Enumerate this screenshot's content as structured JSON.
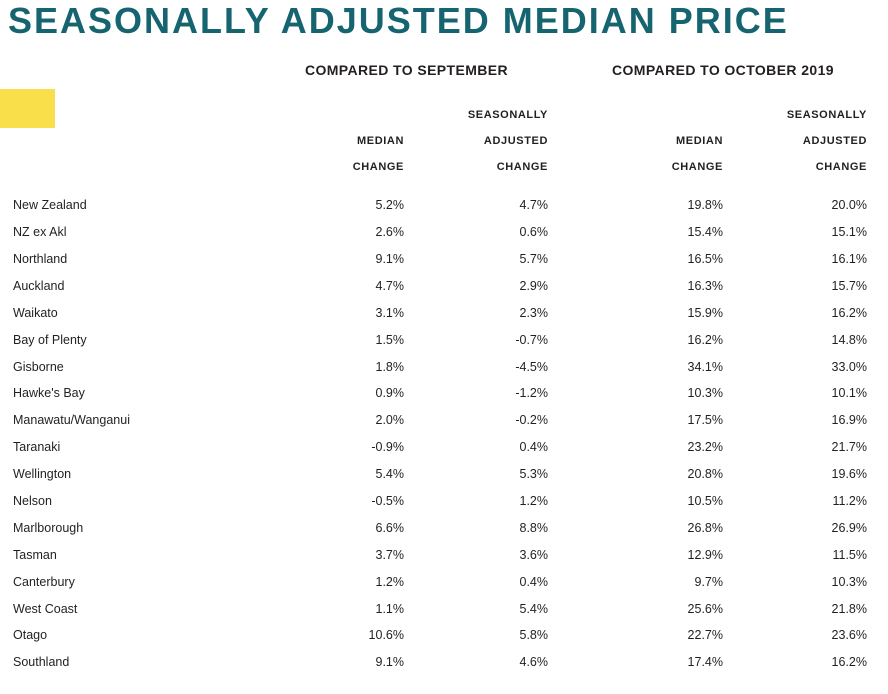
{
  "page": {
    "title": "SEASONALLY ADJUSTED MEDIAN PRICE"
  },
  "colors": {
    "title": "#16646F",
    "highlight": "#F9E04B",
    "text": "#231F20"
  },
  "chart_data": {
    "type": "table",
    "title": "SEASONALLY ADJUSTED MEDIAN PRICE",
    "group_headers": [
      "COMPARED TO SEPTEMBER",
      "COMPARED TO OCTOBER 2019"
    ],
    "column_headers": [
      "MEDIAN\nCHANGE",
      "SEASONALLY\nADJUSTED\nCHANGE",
      "MEDIAN\nCHANGE",
      "SEASONALLY\nADJUSTED\nCHANGE"
    ],
    "rows": [
      {
        "region": "New Zealand",
        "values": [
          "5.2%",
          "4.7%",
          "19.8%",
          "20.0%"
        ]
      },
      {
        "region": "NZ ex Akl",
        "values": [
          "2.6%",
          "0.6%",
          "15.4%",
          "15.1%"
        ]
      },
      {
        "region": "Northland",
        "values": [
          "9.1%",
          "5.7%",
          "16.5%",
          "16.1%"
        ]
      },
      {
        "region": "Auckland",
        "values": [
          "4.7%",
          "2.9%",
          "16.3%",
          "15.7%"
        ]
      },
      {
        "region": "Waikato",
        "values": [
          "3.1%",
          "2.3%",
          "15.9%",
          "16.2%"
        ]
      },
      {
        "region": "Bay of Plenty",
        "values": [
          "1.5%",
          "-0.7%",
          "16.2%",
          "14.8%"
        ]
      },
      {
        "region": "Gisborne",
        "values": [
          "1.8%",
          "-4.5%",
          "34.1%",
          "33.0%"
        ]
      },
      {
        "region": "Hawke's Bay",
        "values": [
          "0.9%",
          "-1.2%",
          "10.3%",
          "10.1%"
        ]
      },
      {
        "region": "Manawatu/Wanganui",
        "values": [
          "2.0%",
          "-0.2%",
          "17.5%",
          "16.9%"
        ]
      },
      {
        "region": "Taranaki",
        "values": [
          "-0.9%",
          "0.4%",
          "23.2%",
          "21.7%"
        ]
      },
      {
        "region": "Wellington",
        "values": [
          "5.4%",
          "5.3%",
          "20.8%",
          "19.6%"
        ]
      },
      {
        "region": "Nelson",
        "values": [
          "-0.5%",
          "1.2%",
          "10.5%",
          "11.2%"
        ]
      },
      {
        "region": "Marlborough",
        "values": [
          "6.6%",
          "8.8%",
          "26.8%",
          "26.9%"
        ]
      },
      {
        "region": "Tasman",
        "values": [
          "3.7%",
          "3.6%",
          "12.9%",
          "11.5%"
        ]
      },
      {
        "region": "Canterbury",
        "values": [
          "1.2%",
          "0.4%",
          "9.7%",
          "10.3%"
        ]
      },
      {
        "region": "West Coast",
        "values": [
          "1.1%",
          "5.4%",
          "25.6%",
          "21.8%"
        ]
      },
      {
        "region": "Otago",
        "values": [
          "10.6%",
          "5.8%",
          "22.7%",
          "23.6%"
        ]
      },
      {
        "region": "Southland",
        "values": [
          "9.1%",
          "4.6%",
          "17.4%",
          "16.2%"
        ]
      }
    ]
  }
}
